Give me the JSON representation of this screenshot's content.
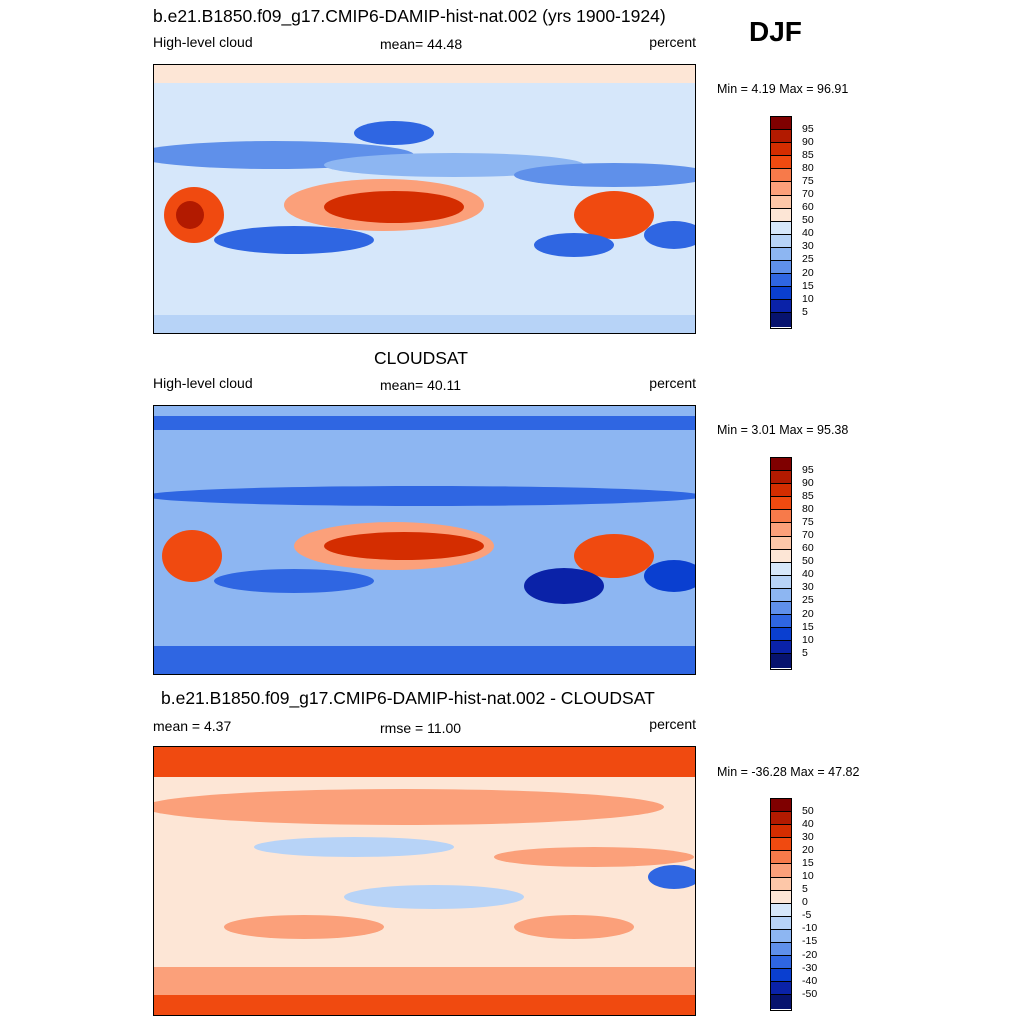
{
  "season": "DJF",
  "panels": [
    {
      "id": "model",
      "title": "b.e21.B1850.f09_g17.CMIP6-DAMIP-hist-nat.002 (yrs 1900-1924)",
      "left_label": "High-level cloud",
      "center_label": "mean=  44.48",
      "right_label": "percent",
      "minmax": "Min =   4.19 Max =  96.91",
      "colorbar_labels": [
        "95",
        "90",
        "85",
        "80",
        "75",
        "70",
        "60",
        "50",
        "40",
        "30",
        "25",
        "20",
        "15",
        "10",
        "5"
      ]
    },
    {
      "id": "obs",
      "title": "CLOUDSAT",
      "left_label": "High-level cloud",
      "center_label": "mean=  40.11",
      "right_label": "percent",
      "minmax": "Min =   3.01 Max =  95.38",
      "colorbar_labels": [
        "95",
        "90",
        "85",
        "80",
        "75",
        "70",
        "60",
        "50",
        "40",
        "30",
        "25",
        "20",
        "15",
        "10",
        "5"
      ]
    },
    {
      "id": "diff",
      "title": "b.e21.B1850.f09_g17.CMIP6-DAMIP-hist-nat.002 - CLOUDSAT",
      "left_label": "mean =   4.37",
      "center_label": "rmse =  11.00",
      "right_label": "percent",
      "minmax": "Min = -36.28 Max =  47.82",
      "colorbar_labels": [
        "50",
        "40",
        "30",
        "20",
        "15",
        "10",
        "5",
        "0",
        "-5",
        "-10",
        "-15",
        "-20",
        "-30",
        "-40",
        "-50"
      ]
    }
  ],
  "colors": {
    "scale": [
      "#7f0000",
      "#b21a00",
      "#d42d00",
      "#f04a10",
      "#f77a4a",
      "#fba07a",
      "#fdc7a8",
      "#fde6d6",
      "#d6e7fa",
      "#b7d3f7",
      "#8db6f2",
      "#5f90ea",
      "#2f66e2",
      "#0a3fd0",
      "#0a22a8",
      "#07136e"
    ]
  }
}
